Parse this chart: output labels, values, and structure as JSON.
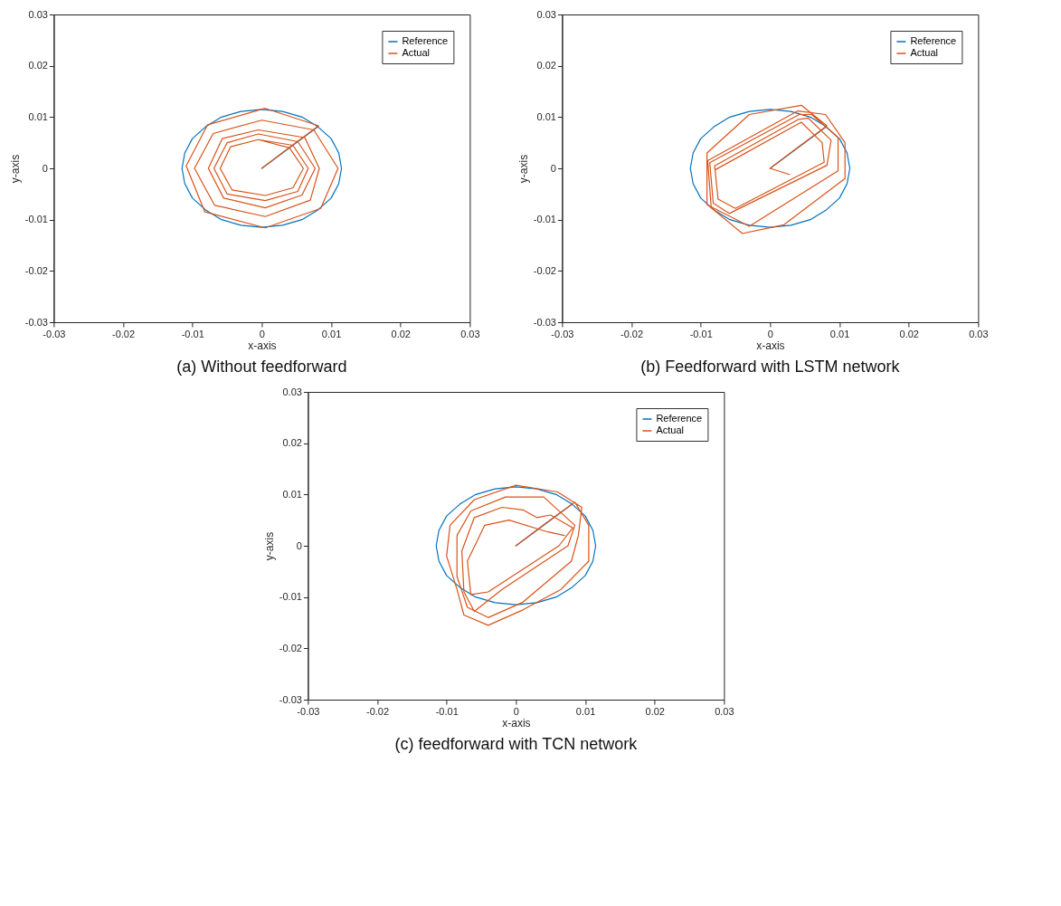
{
  "chart_data": [
    {
      "type": "line",
      "title": "(a) Without feedforward",
      "xlabel": "x-axis",
      "ylabel": "y-axis",
      "xlim": [
        -0.03,
        0.03
      ],
      "ylim": [
        -0.03,
        0.03
      ],
      "xticks": [
        -0.03,
        -0.02,
        -0.01,
        0,
        0.01,
        0.02,
        0.03
      ],
      "yticks": [
        -0.03,
        -0.02,
        -0.01,
        0,
        0.01,
        0.02,
        0.03
      ],
      "grid": false,
      "legend": "top right",
      "series": [
        {
          "name": "Reference",
          "color": "#0072bd",
          "x": [
            0,
            0.0041,
            0.0081,
            0.0058,
            0.003,
            0,
            -0.003,
            -0.0058,
            -0.0081,
            -0.01,
            -0.0111,
            -0.0115,
            -0.0111,
            -0.01,
            -0.0081,
            -0.0058,
            -0.003,
            0,
            0.003,
            0.0058,
            0.0081,
            0.01,
            0.0111,
            0.0115,
            0.0111,
            0.01,
            0.0081
          ],
          "values": [
            0,
            0.0041,
            0.0081,
            0.01,
            0.0111,
            0.0115,
            0.0111,
            0.01,
            0.0081,
            0.0058,
            0.003,
            0,
            -0.003,
            -0.0058,
            -0.0081,
            -0.01,
            -0.0111,
            -0.0115,
            -0.0111,
            -0.01,
            -0.0081,
            -0.0058,
            -0.003,
            0,
            0.003,
            0.0058,
            0.0081
          ]
        },
        {
          "name": "Actual",
          "color": "#d95319",
          "x": [
            0,
            0.0041,
            0.0082,
            0.0005,
            -0.0078,
            -0.0109,
            -0.0082,
            0.0005,
            0.0085,
            0.011,
            0.0075,
            0,
            -0.007,
            -0.0097,
            -0.0068,
            0.0005,
            0.007,
            0.0083,
            0.0062,
            -0.0005,
            -0.0057,
            -0.0077,
            -0.0055,
            0.0005,
            0.0058,
            0.0077,
            0.0052,
            -0.0005,
            -0.005,
            -0.0069,
            -0.005,
            0.0005,
            0.0052,
            0.0067,
            0.0045,
            -0.0005,
            -0.0045,
            -0.006,
            -0.0043,
            0.0005,
            0.0045,
            0.006,
            0.004,
            -0.0005
          ],
          "values": [
            0,
            0.0042,
            0.0083,
            0.0117,
            0.0085,
            0.0005,
            -0.0085,
            -0.0116,
            -0.0078,
            0,
            0.0075,
            0.0094,
            0.0068,
            0,
            -0.0072,
            -0.0094,
            -0.0062,
            0,
            0.006,
            0.0075,
            0.0058,
            0,
            -0.0058,
            -0.0077,
            -0.0052,
            0,
            0.0052,
            0.0067,
            0.005,
            0,
            -0.005,
            -0.0063,
            -0.0045,
            0,
            0.0045,
            0.0056,
            0.0042,
            0,
            -0.0042,
            -0.0053,
            -0.0038,
            0,
            0.004,
            0.0056
          ]
        }
      ]
    },
    {
      "type": "line",
      "title": "(b) Feedforward with LSTM network",
      "xlabel": "x-axis",
      "ylabel": "y-axis",
      "xlim": [
        -0.03,
        0.03
      ],
      "ylim": [
        -0.03,
        0.03
      ],
      "xticks": [
        -0.03,
        -0.02,
        -0.01,
        0,
        0.01,
        0.02,
        0.03
      ],
      "yticks": [
        -0.03,
        -0.02,
        -0.01,
        0,
        0.01,
        0.02,
        0.03
      ],
      "grid": false,
      "legend": "top right",
      "series": [
        {
          "name": "Reference",
          "color": "#0072bd",
          "x": [
            0,
            0.0041,
            0.0081,
            0.0058,
            0.003,
            0,
            -0.003,
            -0.0058,
            -0.0081,
            -0.01,
            -0.0111,
            -0.0115,
            -0.0111,
            -0.01,
            -0.0081,
            -0.0058,
            -0.003,
            0,
            0.003,
            0.0058,
            0.0081,
            0.01,
            0.0111,
            0.0115,
            0.0111,
            0.01,
            0.0081
          ],
          "values": [
            0,
            0.0041,
            0.0081,
            0.01,
            0.0111,
            0.0115,
            0.0111,
            0.01,
            0.0081,
            0.0058,
            0.003,
            0,
            -0.003,
            -0.0058,
            -0.0081,
            -0.01,
            -0.0111,
            -0.0115,
            -0.0111,
            -0.01,
            -0.0081,
            -0.0058,
            -0.003,
            0,
            0.003,
            0.0058,
            0.0081
          ]
        },
        {
          "name": "Actual",
          "color": "#d95319",
          "x": [
            0.0028,
            0,
            0.0041,
            0.0082,
            0.0045,
            -0.003,
            -0.0091,
            -0.0091,
            -0.004,
            0.002,
            0.0108,
            0.0108,
            0.008,
            0.004,
            -0.009,
            -0.0085,
            -0.003,
            0.0098,
            0.0098,
            0.006,
            0.0042,
            -0.0087,
            -0.0082,
            -0.0059,
            0.0082,
            0.0088,
            0.0055,
            0.004,
            -0.008,
            -0.0075,
            -0.005,
            0.0078,
            0.0075,
            0.0045,
            -0.0078
          ],
          "values": [
            -0.0012,
            0,
            0.0042,
            0.0083,
            0.0123,
            0.0105,
            0.003,
            -0.007,
            -0.0127,
            -0.011,
            -0.002,
            0.005,
            0.0105,
            0.0112,
            0.0015,
            -0.0075,
            -0.0113,
            -0.0005,
            0.006,
            0.0105,
            0.0105,
            0.0011,
            -0.0068,
            -0.0088,
            0.0006,
            0.0055,
            0.0098,
            0.0095,
            0.0005,
            -0.006,
            -0.0078,
            0.0012,
            0.005,
            0.009,
            -0.0002
          ]
        }
      ]
    },
    {
      "type": "line",
      "title": "(c) feedforward with TCN network",
      "xlabel": "x-axis",
      "ylabel": "y-axis",
      "xlim": [
        -0.03,
        0.03
      ],
      "ylim": [
        -0.03,
        0.03
      ],
      "xticks": [
        -0.03,
        -0.02,
        -0.01,
        0,
        0.01,
        0.02,
        0.03
      ],
      "yticks": [
        -0.03,
        -0.02,
        -0.01,
        0,
        0.01,
        0.02,
        0.03
      ],
      "grid": false,
      "legend": "top right",
      "series": [
        {
          "name": "Reference",
          "color": "#0072bd",
          "x": [
            0,
            0.0041,
            0.0081,
            0.0058,
            0.003,
            0,
            -0.003,
            -0.0058,
            -0.0081,
            -0.01,
            -0.0111,
            -0.0115,
            -0.0111,
            -0.01,
            -0.0081,
            -0.0058,
            -0.003,
            0,
            0.003,
            0.0058,
            0.0081,
            0.01,
            0.0111,
            0.0115,
            0.0111,
            0.01,
            0.0081
          ],
          "values": [
            0,
            0.0041,
            0.0081,
            0.01,
            0.0111,
            0.0115,
            0.0111,
            0.01,
            0.0081,
            0.0058,
            0.003,
            0,
            -0.003,
            -0.0058,
            -0.0081,
            -0.01,
            -0.0111,
            -0.0115,
            -0.0111,
            -0.01,
            -0.0081,
            -0.0058,
            -0.003,
            0,
            0.003,
            0.0058,
            0.0081
          ]
        },
        {
          "name": "Actual",
          "color": "#d95319",
          "x": [
            0,
            0.0041,
            0.0085,
            0.0105,
            0.0105,
            0.0065,
            0.001,
            -0.004,
            -0.0075,
            -0.0085,
            -0.01,
            -0.0095,
            -0.006,
            0,
            0.006,
            0.0095,
            0.009,
            0.008,
            0.001,
            -0.004,
            -0.007,
            -0.0085,
            -0.0085,
            -0.0065,
            -0.0015,
            0.004,
            0.0085,
            0.0075,
            -0.002,
            -0.006,
            -0.0075,
            -0.0078,
            -0.006,
            -0.002,
            0.001,
            0.003,
            0.005,
            0.0082,
            0.0062,
            -0.004,
            -0.0065,
            -0.007,
            -0.0045,
            -0.001,
            0.0046,
            0.007
          ],
          "values": [
            0,
            0.0042,
            0.0085,
            0.004,
            -0.003,
            -0.0085,
            -0.0125,
            -0.0155,
            -0.0135,
            -0.0085,
            -0.002,
            0.004,
            0.009,
            0.0118,
            0.0105,
            0.0075,
            0.002,
            -0.003,
            -0.011,
            -0.014,
            -0.012,
            -0.006,
            0.002,
            0.0068,
            0.0095,
            0.0095,
            0.004,
            0,
            -0.0085,
            -0.0128,
            -0.009,
            -0.001,
            0.0055,
            0.0075,
            0.007,
            0.0055,
            0.006,
            0.0035,
            0,
            -0.009,
            -0.0095,
            -0.003,
            0.004,
            0.005,
            0.0027,
            0.002
          ]
        }
      ]
    }
  ]
}
